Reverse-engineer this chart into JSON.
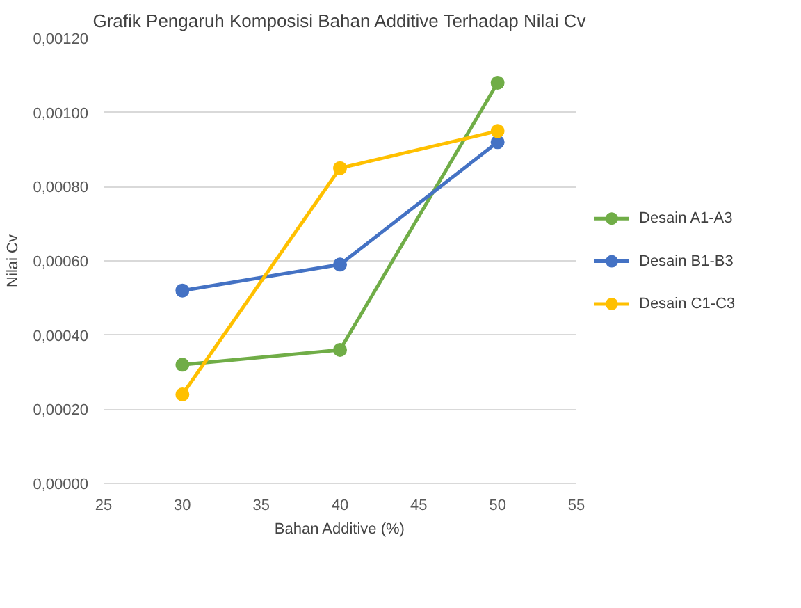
{
  "chart_data": {
    "type": "line",
    "title": "Grafik Pengaruh Komposisi Bahan Additive Terhadap Nilai Cv",
    "xlabel": "Bahan Additive (%)",
    "ylabel": "Nilai Cv",
    "x": [
      30,
      40,
      50
    ],
    "series": [
      {
        "name": "Desain A1-A3",
        "color": "#70ad47",
        "values": [
          0.00032,
          0.00036,
          0.00108
        ]
      },
      {
        "name": "Desain B1-B3",
        "color": "#4472c4",
        "values": [
          0.00052,
          0.00059,
          0.00092
        ]
      },
      {
        "name": "Desain C1-C3",
        "color": "#ffc000",
        "values": [
          0.00024,
          0.00085,
          0.00095
        ]
      }
    ],
    "xlim": [
      25,
      55
    ],
    "xticks": [
      25,
      30,
      35,
      40,
      45,
      50,
      55
    ],
    "ylim": [
      0,
      0.0012
    ],
    "yticks": [
      {
        "value": 0,
        "label": "0,00000"
      },
      {
        "value": 0.0002,
        "label": "0,00020"
      },
      {
        "value": 0.0004,
        "label": "0,00040"
      },
      {
        "value": 0.0006,
        "label": "0,00060"
      },
      {
        "value": 0.0008,
        "label": "0,00080"
      },
      {
        "value": 0.001,
        "label": "0,00100"
      },
      {
        "value": 0.0012,
        "label": "0,00120"
      }
    ],
    "grid": "y",
    "legend": "right",
    "marker": "circle",
    "line_style": "solid"
  }
}
